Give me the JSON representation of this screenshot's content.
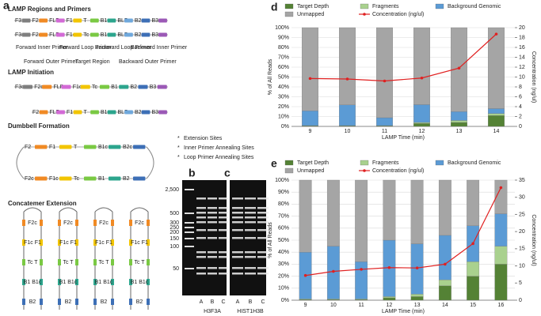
{
  "diagram": {
    "panel": "a",
    "titles": [
      "LAMP Regions and Primers",
      "LAMP Initiation",
      "Dumbbell Formation",
      "Concatemer Extension"
    ],
    "strands": [
      [
        {
          "label": "F3",
          "color": "#7f7f7f"
        },
        {
          "label": "F2",
          "color": "#f08a24"
        },
        {
          "label": "FLP",
          "color": "#d36ad6"
        },
        {
          "label": "F1",
          "color": "#f2c500"
        },
        {
          "label": "T",
          "color": "#7ac943"
        },
        {
          "label": "B1c",
          "color": "#2ca58d"
        },
        {
          "label": "BLP",
          "color": "#6fa8dc"
        },
        {
          "label": "B2c",
          "color": "#3d6fb6"
        },
        {
          "label": "B3c",
          "color": "#9b59b6"
        }
      ],
      [
        {
          "label": "F3c",
          "color": "#7f7f7f"
        },
        {
          "label": "F2c",
          "color": "#f08a24"
        },
        {
          "label": "FLPc",
          "color": "#d36ad6"
        },
        {
          "label": "F1c",
          "color": "#f2c500"
        },
        {
          "label": "Tc",
          "color": "#7ac943"
        },
        {
          "label": "B1",
          "color": "#2ca58d"
        },
        {
          "label": "BLPc",
          "color": "#6fa8dc"
        },
        {
          "label": "B2",
          "color": "#3d6fb6"
        },
        {
          "label": "B3",
          "color": "#9b59b6"
        }
      ],
      [
        {
          "label": "F3c",
          "color": "#7f7f7f"
        },
        {
          "label": "F2c",
          "color": "#f08a24"
        },
        {
          "label": "FLPc",
          "color": "#d36ad6"
        },
        {
          "label": "F1c",
          "color": "#f2c500"
        },
        {
          "label": "Tc",
          "color": "#7ac943"
        },
        {
          "label": "B1",
          "color": "#2ca58d"
        },
        {
          "label": "B2",
          "color": "#3d6fb6"
        },
        {
          "label": "B3",
          "color": "#9b59b6"
        }
      ],
      [
        {
          "label": "F2",
          "color": "#f08a24"
        },
        {
          "label": "FLP",
          "color": "#d36ad6"
        },
        {
          "label": "F1",
          "color": "#f2c500"
        },
        {
          "label": "T",
          "color": "#7ac943"
        },
        {
          "label": "B1c",
          "color": "#2ca58d"
        },
        {
          "label": "BLP",
          "color": "#6fa8dc"
        },
        {
          "label": "B2c",
          "color": "#3d6fb6"
        },
        {
          "label": "B3c",
          "color": "#9b59b6"
        }
      ],
      [
        {
          "label": "F2",
          "color": "#f08a24"
        },
        {
          "label": "F1",
          "color": "#f2c500"
        },
        {
          "label": "T",
          "color": "#7ac943"
        },
        {
          "label": "B1c",
          "color": "#2ca58d"
        },
        {
          "label": "B2c",
          "color": "#3d6fb6"
        }
      ],
      [
        {
          "label": "F2c",
          "color": "#f08a24"
        },
        {
          "label": "F1c",
          "color": "#f2c500"
        },
        {
          "label": "Tc",
          "color": "#7ac943"
        },
        {
          "label": "B1",
          "color": "#2ca58d"
        },
        {
          "label": "B2",
          "color": "#3d6fb6"
        }
      ]
    ],
    "primers": [
      "Forward Inner Primer",
      "Forward Loop Primer",
      "Backward Loop Primer",
      "Backward Inner Primer",
      "Forward Outer Primer",
      "Target Region",
      "Backward Outer Primer"
    ],
    "legend": [
      {
        "symbol": "*",
        "color": "#222222",
        "label": "Extension Sites"
      },
      {
        "symbol": "*",
        "color": "#e02020",
        "label": "Inner Primer Annealing Sites"
      },
      {
        "symbol": "*",
        "color": "#3050e0",
        "label": "Loop Primer Annealing Sites"
      }
    ],
    "concatemer": [
      "F2c",
      "F1c F1",
      "Tc T",
      "B1 B1c",
      "B2"
    ]
  },
  "gels": {
    "ladder": [
      "2,500",
      "500",
      "300",
      "250",
      "200",
      "150",
      "100",
      "50"
    ],
    "panels": [
      {
        "panel": "b",
        "lanes": [
          "A",
          "B",
          "C"
        ],
        "gene": "H3F3A"
      },
      {
        "panel": "c",
        "lanes": [
          "A",
          "B",
          "C"
        ],
        "gene": "HIST1H3B"
      }
    ]
  },
  "chart_data": [
    {
      "type": "bar",
      "stacked": true,
      "panel": "d",
      "xlabel": "LAMP Time (min)",
      "ylabel": "% of All Reads",
      "y2label": "Concentration (ng/ul)",
      "categories": [
        "9",
        "10",
        "11",
        "12",
        "13",
        "14"
      ],
      "series": [
        {
          "name": "Target Depth",
          "color": "#548235",
          "values": [
            0.5,
            0.5,
            0.5,
            3,
            4,
            11
          ]
        },
        {
          "name": "Fragments",
          "color": "#a9d18e",
          "values": [
            0.3,
            0.3,
            0.3,
            1,
            2,
            2
          ]
        },
        {
          "name": "Background Genomic",
          "color": "#5b9bd5",
          "values": [
            15,
            21,
            8,
            18,
            9,
            5
          ]
        },
        {
          "name": "Unmapped",
          "color": "#a5a5a5",
          "values": [
            84.2,
            78.2,
            91.2,
            78,
            85,
            82
          ]
        },
        {
          "name": "Concentration (ng/ul)",
          "color": "#e02020",
          "type": "line",
          "axis": "y2",
          "values": [
            9.7,
            9.6,
            9.2,
            9.8,
            11.8,
            18.7
          ]
        }
      ],
      "ylim": [
        0,
        100
      ],
      "yticks": [
        {
          "value": 0,
          "label": "0%"
        },
        {
          "value": 10,
          "label": "10%"
        },
        {
          "value": 20,
          "label": "20%"
        },
        {
          "value": 30,
          "label": "30%"
        },
        {
          "value": 40,
          "label": "40%"
        },
        {
          "value": 50,
          "label": "50%"
        },
        {
          "value": 60,
          "label": "60%"
        },
        {
          "value": 70,
          "label": "70%"
        },
        {
          "value": 80,
          "label": "80%"
        },
        {
          "value": 90,
          "label": "90%"
        },
        {
          "value": 100,
          "label": "100%"
        }
      ],
      "y2lim": [
        0,
        20
      ],
      "y2ticks": [
        0,
        2,
        4,
        6,
        8,
        10,
        12,
        14,
        16,
        18,
        20
      ],
      "grid": true
    },
    {
      "type": "bar",
      "stacked": true,
      "panel": "e",
      "xlabel": "LAMP Time (min)",
      "ylabel": "% of All Reads",
      "y2label": "Concentration (ng/ul)",
      "categories": [
        "9",
        "10",
        "11",
        "12",
        "13",
        "14",
        "15",
        "16"
      ],
      "series": [
        {
          "name": "Target Depth",
          "color": "#548235",
          "values": [
            0.5,
            0.5,
            0.5,
            2,
            3,
            12,
            20,
            30
          ]
        },
        {
          "name": "Fragments",
          "color": "#a9d18e",
          "values": [
            0.5,
            0.5,
            0.5,
            1,
            2,
            5,
            12,
            15
          ]
        },
        {
          "name": "Background Genomic",
          "color": "#5b9bd5",
          "values": [
            39,
            44,
            31,
            47,
            42,
            37,
            30,
            27
          ]
        },
        {
          "name": "Unmapped",
          "color": "#a5a5a5",
          "values": [
            60,
            55,
            68,
            50,
            53,
            46,
            38,
            28
          ]
        },
        {
          "name": "Concentration (ng/ul)",
          "color": "#e02020",
          "type": "line",
          "axis": "y2",
          "values": [
            7.2,
            8.4,
            9.0,
            9.5,
            9.4,
            10.5,
            16.5,
            32.8
          ]
        }
      ],
      "ylim": [
        0,
        100
      ],
      "yticks": [
        {
          "value": 0,
          "label": "0%"
        },
        {
          "value": 10,
          "label": "10%"
        },
        {
          "value": 20,
          "label": "20%"
        },
        {
          "value": 30,
          "label": "30%"
        },
        {
          "value": 40,
          "label": "40%"
        },
        {
          "value": 50,
          "label": "50%"
        },
        {
          "value": 60,
          "label": "60%"
        },
        {
          "value": 70,
          "label": "70%"
        },
        {
          "value": 80,
          "label": "80%"
        },
        {
          "value": 90,
          "label": "90%"
        },
        {
          "value": 100,
          "label": "100%"
        }
      ],
      "y2lim": [
        0,
        35
      ],
      "y2ticks": [
        0,
        5,
        10,
        15,
        20,
        25,
        30,
        35
      ],
      "grid": true
    }
  ]
}
